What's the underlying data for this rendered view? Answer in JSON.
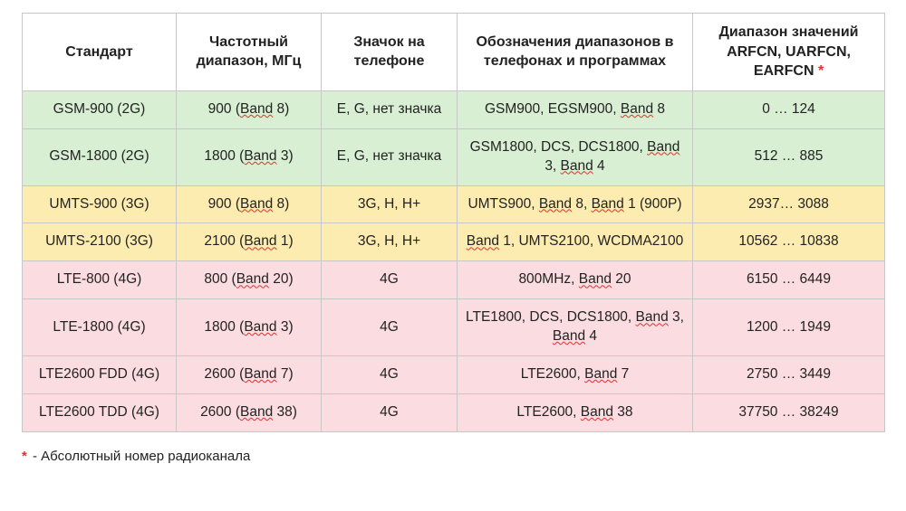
{
  "table": {
    "row_colors": {
      "header": "#ffffff",
      "green": "#d8efd3",
      "yellow": "#fdecb0",
      "pink": "#fbdde1"
    },
    "columns": [
      {
        "key": "std",
        "label": "Стандарт"
      },
      {
        "key": "freq",
        "label": "Частотный диапазон, МГц"
      },
      {
        "key": "icon",
        "label": "Значок на телефоне"
      },
      {
        "key": "names",
        "label": "Обозначения диапазонов в телефонах и программах"
      },
      {
        "key": "arfcn",
        "label": "Диапазон значений ARFCN, UARFCN, EARFCN",
        "asterisk": true
      }
    ],
    "rows": [
      {
        "color": "green",
        "std": [
          {
            "t": "GSM-900 (2G)"
          }
        ],
        "freq": [
          {
            "t": "900 ("
          },
          {
            "t": "Band",
            "wavy": true
          },
          {
            "t": " 8)"
          }
        ],
        "icon": [
          {
            "t": "E, G, нет значка"
          }
        ],
        "names": [
          {
            "t": "GSM900, EGSM900, "
          },
          {
            "t": "Band",
            "wavy": true
          },
          {
            "t": " 8"
          }
        ],
        "arfcn": [
          {
            "t": "0 … 124"
          }
        ]
      },
      {
        "color": "green",
        "std": [
          {
            "t": "GSM-1800 (2G)"
          }
        ],
        "freq": [
          {
            "t": "1800 ("
          },
          {
            "t": "Band",
            "wavy": true
          },
          {
            "t": " 3)"
          }
        ],
        "icon": [
          {
            "t": "E, G, нет значка"
          }
        ],
        "names": [
          {
            "t": "GSM1800, DCS,  DCS1800, "
          },
          {
            "t": "Band",
            "wavy": true
          },
          {
            "t": " 3, "
          },
          {
            "t": "Band",
            "wavy": true
          },
          {
            "t": " 4"
          }
        ],
        "arfcn": [
          {
            "t": "512 … 885"
          }
        ]
      },
      {
        "color": "yellow",
        "std": [
          {
            "t": "UMTS-900 (3G)"
          }
        ],
        "freq": [
          {
            "t": "900 ("
          },
          {
            "t": "Band",
            "wavy": true
          },
          {
            "t": " 8)"
          }
        ],
        "icon": [
          {
            "t": "3G, H, H+"
          }
        ],
        "names": [
          {
            "t": "UMTS900, "
          },
          {
            "t": "Band",
            "wavy": true
          },
          {
            "t": " 8, "
          },
          {
            "t": "Band",
            "wavy": true
          },
          {
            "t": " 1 (900P)"
          }
        ],
        "arfcn": [
          {
            "t": "2937… 3088"
          }
        ]
      },
      {
        "color": "yellow",
        "std": [
          {
            "t": "UMTS-2100 (3G)"
          }
        ],
        "freq": [
          {
            "t": "2100 ("
          },
          {
            "t": "Band",
            "wavy": true
          },
          {
            "t": " 1)"
          }
        ],
        "icon": [
          {
            "t": "3G, H, H+"
          }
        ],
        "names": [
          {
            "t": "Band",
            "wavy": true
          },
          {
            "t": " 1, UMTS2100, WCDMA2100"
          }
        ],
        "arfcn": [
          {
            "t": "10562 … 10838"
          }
        ]
      },
      {
        "color": "pink",
        "std": [
          {
            "t": "LTE-800 (4G)"
          }
        ],
        "freq": [
          {
            "t": "800 ("
          },
          {
            "t": "Band",
            "wavy": true
          },
          {
            "t": " 20)"
          }
        ],
        "icon": [
          {
            "t": "4G"
          }
        ],
        "names": [
          {
            "t": "800MHz, "
          },
          {
            "t": "Band",
            "wavy": true
          },
          {
            "t": " 20"
          }
        ],
        "arfcn": [
          {
            "t": "6150 … 6449"
          }
        ]
      },
      {
        "color": "pink",
        "std": [
          {
            "t": "LTE-1800 (4G)"
          }
        ],
        "freq": [
          {
            "t": "1800 ("
          },
          {
            "t": "Band",
            "wavy": true
          },
          {
            "t": " 3)"
          }
        ],
        "icon": [
          {
            "t": "4G"
          }
        ],
        "names": [
          {
            "t": "LTE1800, DCS, DCS1800, "
          },
          {
            "t": "Band",
            "wavy": true
          },
          {
            "t": " 3, "
          },
          {
            "t": "Band",
            "wavy": true
          },
          {
            "t": " 4"
          }
        ],
        "arfcn": [
          {
            "t": "1200 … 1949"
          }
        ]
      },
      {
        "color": "pink",
        "std": [
          {
            "t": "LTE2600 FDD (4G)"
          }
        ],
        "freq": [
          {
            "t": "2600 ("
          },
          {
            "t": "Band",
            "wavy": true
          },
          {
            "t": " 7)"
          }
        ],
        "icon": [
          {
            "t": "4G"
          }
        ],
        "names": [
          {
            "t": "LTE2600, "
          },
          {
            "t": "Band",
            "wavy": true
          },
          {
            "t": " 7"
          }
        ],
        "arfcn": [
          {
            "t": "2750 … 3449"
          }
        ]
      },
      {
        "color": "pink",
        "std": [
          {
            "t": "LTE2600 TDD (4G)"
          }
        ],
        "freq": [
          {
            "t": "2600 ("
          },
          {
            "t": "Band",
            "wavy": true
          },
          {
            "t": " 38)"
          }
        ],
        "icon": [
          {
            "t": "4G"
          }
        ],
        "names": [
          {
            "t": "LTE2600, "
          },
          {
            "t": "Band",
            "wavy": true
          },
          {
            "t": " 38"
          }
        ],
        "arfcn": [
          {
            "t": "37750 … 38249"
          }
        ]
      }
    ]
  },
  "footnote": {
    "symbol": "*",
    "text": "  -  Абсолютный номер радиоканала"
  }
}
